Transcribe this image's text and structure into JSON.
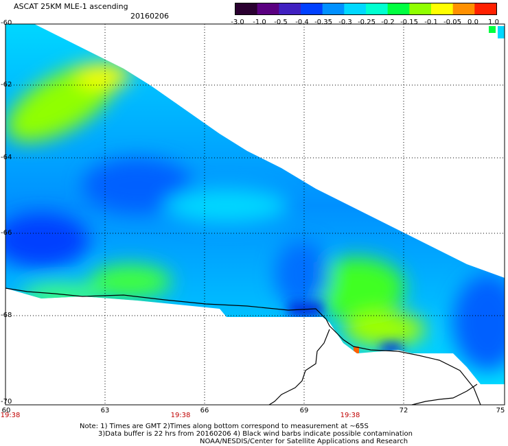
{
  "header": {
    "title": "ASCAT 25KM MLE-1 ascending",
    "date": "20160206"
  },
  "colorbar": {
    "ticks": [
      "-3.0",
      "-1.0",
      "-0.5",
      "-0.4",
      "-0.35",
      "-0.3",
      "-0.25",
      "-0.2",
      "-0.15",
      "-0.1",
      "-0.05",
      "0.0",
      "1.0"
    ],
    "colors": [
      "#2a0030",
      "#5a0080",
      "#4020c0",
      "#0040ff",
      "#0090ff",
      "#00d8ff",
      "#00ffd0",
      "#00ff40",
      "#90ff00",
      "#ffff00",
      "#ff9000",
      "#ff2000"
    ]
  },
  "map": {
    "lat_labels": [
      "-60",
      "-62",
      "-64",
      "-66",
      "-68",
      "-70"
    ],
    "lon_labels": [
      "60",
      "63",
      "66",
      "69",
      "72",
      "75"
    ],
    "time_labels": [
      "19:38",
      "19:38",
      "19:38"
    ]
  },
  "notes": {
    "line1": "Note: 1) Times are GMT 2)Times along bottom correspond to measurement at ~65S",
    "line2": "3)Data buffer is 22 hrs from 20160206 4) Black wind barbs indicate possible contamination",
    "line3": "NOAA/NESDIS/Center for Satellite Applications and Research"
  }
}
